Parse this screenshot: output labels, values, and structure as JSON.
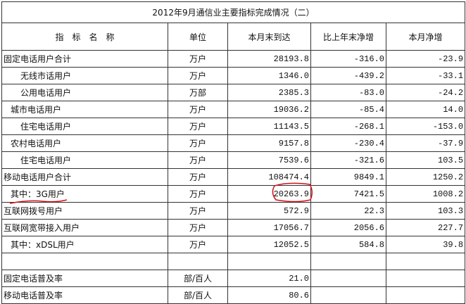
{
  "title": "2012年9月通信业主要指标完成情况（二）",
  "headers": [
    "指　标　名　称",
    "单位",
    "本月末到达",
    "比上年末净增",
    "本月净增"
  ],
  "rows": [
    {
      "name": "固定电话用户合计",
      "level": 0,
      "unit": "万户",
      "current": "28193.8",
      "ytd": "-316.0",
      "month": "-23.9"
    },
    {
      "name": "无线市话用户",
      "level": 2,
      "unit": "万户",
      "current": "1346.0",
      "ytd": "-439.2",
      "month": "-33.1"
    },
    {
      "name": "公用电话用户",
      "level": 2,
      "unit": "万部",
      "current": "2385.3",
      "ytd": "-83.0",
      "month": "-24.2"
    },
    {
      "name": "城市电话用户",
      "level": 1,
      "unit": "万户",
      "current": "19036.2",
      "ytd": "-85.4",
      "month": "14.0"
    },
    {
      "name": "住宅电话用户",
      "level": 2,
      "unit": "万户",
      "current": "11143.5",
      "ytd": "-268.1",
      "month": "-153.0"
    },
    {
      "name": "农村电话用户",
      "level": 1,
      "unit": "万户",
      "current": "9157.8",
      "ytd": "-230.4",
      "month": "-37.9"
    },
    {
      "name": "住宅电话用户",
      "level": 2,
      "unit": "万户",
      "current": "7539.6",
      "ytd": "-321.6",
      "month": "103.5"
    },
    {
      "name": "移动电话用户合计",
      "level": 0,
      "unit": "万户",
      "current": "108474.4",
      "ytd": "9849.1",
      "month": "1250.2"
    },
    {
      "name": "其中：3G用户",
      "level": 1,
      "unit": "万户",
      "current": "20263.9",
      "ytd": "7421.5",
      "month": "1008.2"
    },
    {
      "name": "互联网拨号用户",
      "level": 0,
      "unit": "万户",
      "current": "572.9",
      "ytd": "22.3",
      "month": "103.3"
    },
    {
      "name": "互联网宽带接入用户",
      "level": 0,
      "unit": "万户",
      "current": "17056.7",
      "ytd": "2056.6",
      "month": "227.7"
    },
    {
      "name": "其中：xDSL用户",
      "level": 1,
      "unit": "万户",
      "current": "12052.5",
      "ytd": "584.8",
      "month": "39.8"
    },
    {
      "name": "",
      "level": 0,
      "unit": "",
      "current": "",
      "ytd": "",
      "month": ""
    },
    {
      "name": "固定电话普及率",
      "level": 0,
      "unit": "部/百人",
      "current": "21.0",
      "ytd": "",
      "month": ""
    },
    {
      "name": "移动电话普及率",
      "level": 0,
      "unit": "部/百人",
      "current": "80.6",
      "ytd": "",
      "month": ""
    }
  ],
  "annotations": {
    "color": "#d0101a",
    "underline_row": "其中：3G用户",
    "circled_value": "20263.9"
  }
}
